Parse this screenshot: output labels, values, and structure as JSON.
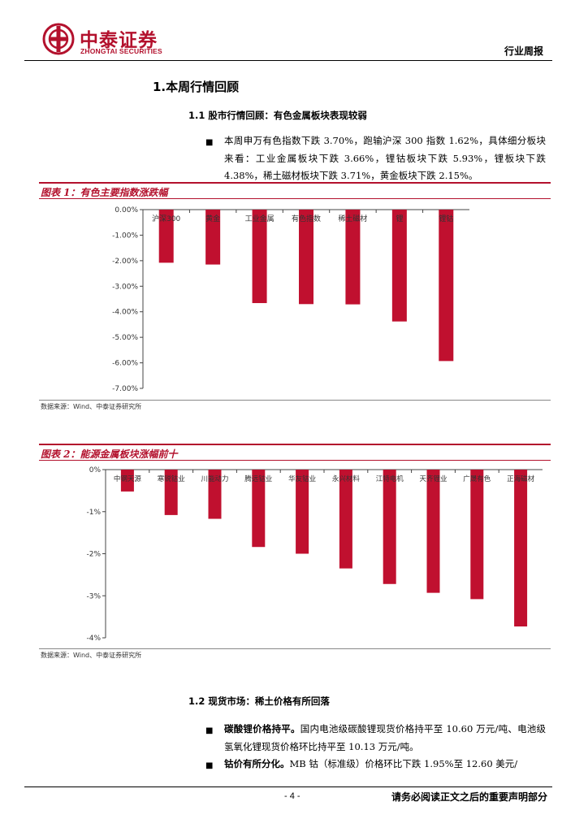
{
  "header": {
    "logo_cn": "中泰证券",
    "logo_en": "ZHONGTAI SECURITIES",
    "report_type": "行业周报"
  },
  "section1": {
    "title": "1.本周行情回顾",
    "subtitle": "1.1 股市行情回顾：有色金属板块表现较弱",
    "bullet": "■",
    "paragraph": "本周申万有色指数下跌 3.70%，跑输沪深 300 指数 1.62%，具体细分板块来看：工业金属板块下跌 3.66%，锂钴板块下跌 5.93%，锂板块下跌 4.38%，稀土磁材板块下跌 3.71%，黄金板块下跌 2.15%。"
  },
  "figure1": {
    "title": "图表 1：有色主要指数涨跌幅",
    "source": "数据来源：Wind、中泰证券研究所"
  },
  "figure2": {
    "title": "图表 2：能源金属板块涨幅前十",
    "source": "数据来源：Wind、中泰证券研究所"
  },
  "section2": {
    "subtitle": "1.2 现货市场：稀土价格有所回落",
    "bullet": "■",
    "item1_bold": "碳酸锂价格持平。",
    "item1_text": "国内电池级碳酸锂现货价格持平至 10.60 万元/吨、电池级氢氧化锂现货价格环比持平至 10.13 万元/吨。",
    "item2_bold": "钴价有所分化。",
    "item2_text": "MB 钴（标准级）价格环比下跌 1.95%至 12.60 美元/"
  },
  "footer": {
    "page": "- 4 -",
    "disclaimer": "请务必阅读正文之后的重要声明部分"
  },
  "colors": {
    "brand": "#b3112d",
    "bar": "#c0102f"
  },
  "chart_data": [
    {
      "type": "bar",
      "categories": [
        "沪深300",
        "黄金",
        "工业金属",
        "有色指数",
        "稀土磁材",
        "锂",
        "锂钴"
      ],
      "values": [
        -2.08,
        -2.15,
        -3.66,
        -3.7,
        -3.71,
        -4.38,
        -5.93
      ],
      "ylim": [
        -7,
        0
      ],
      "yticks": [
        "0.00%",
        "-1.00%",
        "-2.00%",
        "-3.00%",
        "-4.00%",
        "-5.00%",
        "-6.00%",
        "-7.00%"
      ],
      "grid": false
    },
    {
      "type": "bar",
      "categories": [
        "中钢天源",
        "寒锐钴业",
        "川能动力",
        "腾远钴业",
        "华友钴业",
        "永兴材料",
        "江特电机",
        "天齐锂业",
        "广晟有色",
        "正海磁材"
      ],
      "values": [
        -0.52,
        -1.08,
        -1.17,
        -1.84,
        -2.0,
        -2.35,
        -2.72,
        -2.93,
        -3.08,
        -3.73
      ],
      "ylim": [
        -4,
        0
      ],
      "yticks": [
        "0%",
        "-1%",
        "-2%",
        "-3%",
        "-4%"
      ],
      "grid": false
    }
  ]
}
